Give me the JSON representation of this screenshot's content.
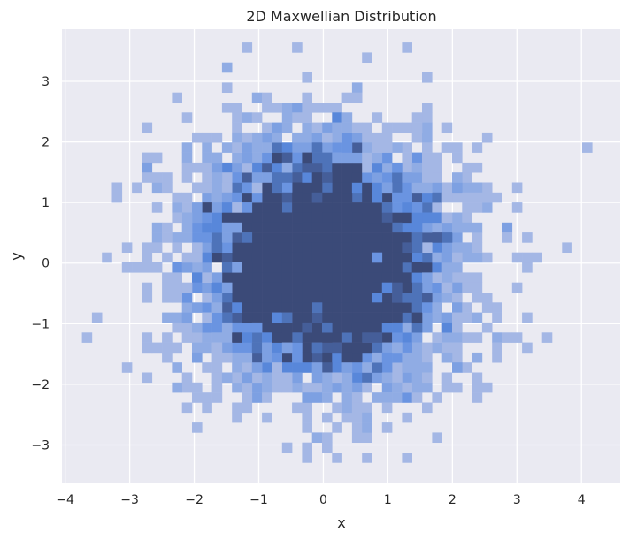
{
  "chart_data": {
    "type": "heatmap",
    "title": "2D Maxwellian Distribution",
    "xlabel": "x",
    "ylabel": "y",
    "xlim": [
      -4.05,
      4.6
    ],
    "ylim": [
      -3.62,
      3.86
    ],
    "xticks": [
      -4,
      -3,
      -2,
      -1,
      0,
      1,
      2,
      3,
      4
    ],
    "yticks": [
      -3,
      -2,
      -1,
      0,
      1,
      2,
      3
    ],
    "xtick_labels": [
      "−4",
      "−3",
      "−2",
      "−1",
      "0",
      "1",
      "2",
      "3",
      "4"
    ],
    "ytick_labels": [
      "−3",
      "−2",
      "−1",
      "0",
      "1",
      "2",
      "3"
    ],
    "grid": true,
    "bin_width": 0.155,
    "bin_height": 0.165,
    "distribution": "2D standard normal, mean 0, sd 1",
    "density_peak_at": [
      0,
      0
    ],
    "count_levels": [
      1,
      2,
      3,
      4,
      5,
      6,
      7,
      8
    ],
    "outlier_bins": [
      {
        "x": 4.15,
        "y": 1.88
      },
      {
        "x": -3.6,
        "y": -1.28
      },
      {
        "x": -3.25,
        "y": 1.25
      },
      {
        "x": 3.2,
        "y": -0.82
      },
      {
        "x": 1.3,
        "y": -3.23
      },
      {
        "x": 1.3,
        "y": 3.5
      },
      {
        "x": -0.45,
        "y": 3.5
      },
      {
        "x": 0.25,
        "y": -3.23
      },
      {
        "x": -0.3,
        "y": -3.23
      },
      {
        "x": 3.05,
        "y": -1.28
      }
    ],
    "colors": {
      "background": "#eaeaf2",
      "grid": "#ffffff",
      "bin_low": "#b7c3e6",
      "bin_mid": "#5a8be0",
      "bin_high": "#3b4a78"
    }
  }
}
